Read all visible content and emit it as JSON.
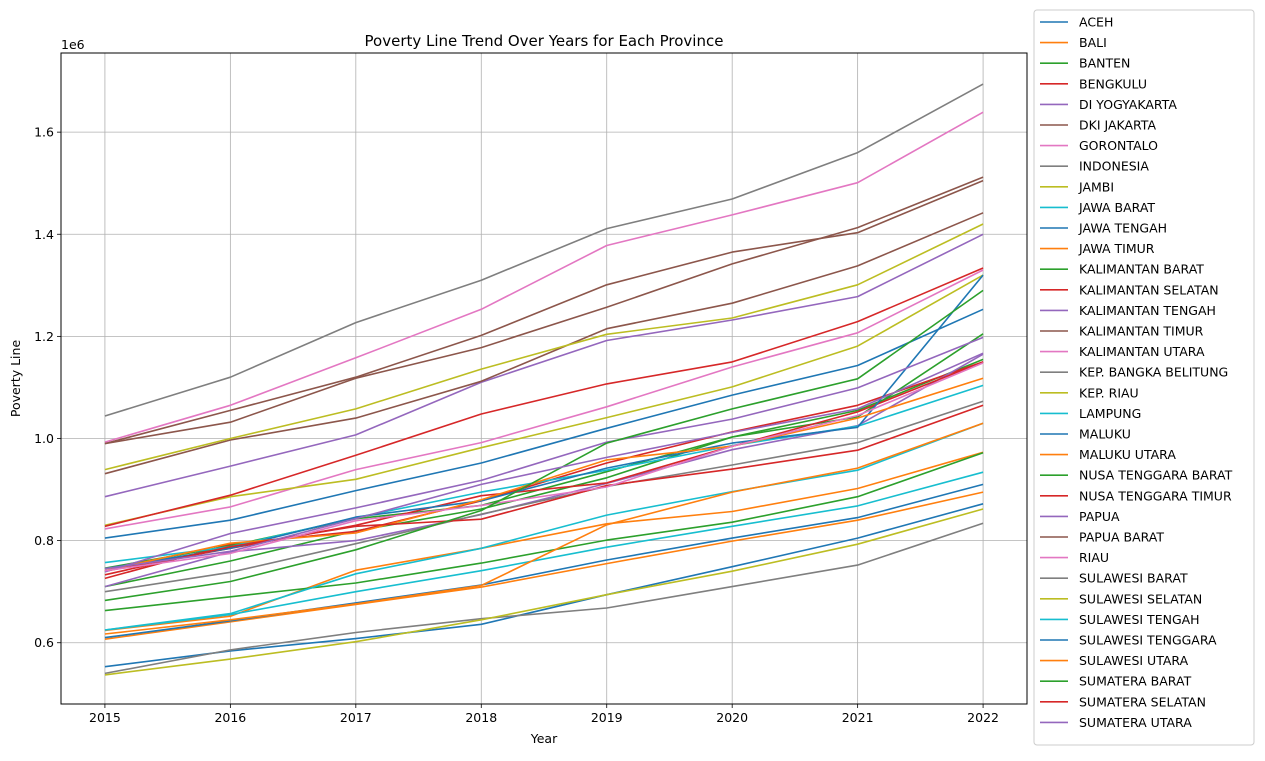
{
  "chart_data": {
    "type": "line",
    "title": "Poverty Line Trend Over Years for Each Province",
    "xlabel": "Year",
    "ylabel": "Poverty Line",
    "offset_label": "1e6",
    "x": [
      2015,
      2016,
      2017,
      2018,
      2019,
      2020,
      2021,
      2022
    ],
    "xlim": [
      2014.65,
      2022.35
    ],
    "ylim": [
      480000,
      1755000
    ],
    "yticks": [
      600000,
      800000,
      1000000,
      1200000,
      1400000,
      1600000
    ],
    "ytick_labels": [
      "0.6",
      "0.8",
      "1.0",
      "1.2",
      "1.4",
      "1.6"
    ],
    "grid": true,
    "legend_position": "outside-right",
    "series": [
      {
        "name": "ACEH",
        "color": "#1f77b4",
        "values": [
          805000,
          840000,
          898000,
          952000,
          1020000,
          1085000,
          1143000,
          1253000
        ]
      },
      {
        "name": "BALI",
        "color": "#ff7f0e",
        "values": [
          624000,
          652000,
          742000,
          785000,
          833000,
          857000,
          902000,
          973000
        ]
      },
      {
        "name": "BANTEN",
        "color": "#2ca02c",
        "values": [
          710000,
          760000,
          819000,
          862000,
          923000,
          1003000,
          1055000,
          1155000
        ]
      },
      {
        "name": "BENGKULU",
        "color": "#d62728",
        "values": [
          726000,
          793000,
          818000,
          878000,
          952000,
          1013000,
          1065000,
          1150000
        ]
      },
      {
        "name": "DI YOGYAKARTA",
        "color": "#9467bd",
        "values": [
          710000,
          778000,
          800000,
          851000,
          912000,
          978000,
          1025000,
          1165000
        ]
      },
      {
        "name": "DKI JAKARTA",
        "color": "#8c564b",
        "values": [
          990000,
          1055000,
          1120000,
          1202000,
          1301000,
          1365000,
          1403000,
          1505000
        ]
      },
      {
        "name": "GORONTALO",
        "color": "#e377c2",
        "values": [
          823000,
          866000,
          939000,
          992000,
          1062000,
          1140000,
          1207000,
          1330000
        ]
      },
      {
        "name": "INDONESIA",
        "color": "#7f7f7f",
        "values": [
          700000,
          738000,
          794000,
          852000,
          906000,
          948000,
          992000,
          1073000
        ]
      },
      {
        "name": "JAMBI",
        "color": "#bcbd22",
        "values": [
          830000,
          886000,
          920000,
          982000,
          1041000,
          1101000,
          1181000,
          1320000
        ]
      },
      {
        "name": "JAWA BARAT",
        "color": "#17becf",
        "values": [
          625000,
          655000,
          700000,
          741000,
          787000,
          828000,
          868000,
          934000
        ]
      },
      {
        "name": "JAWA TENGAH",
        "color": "#1f77b4",
        "values": [
          553000,
          584000,
          608000,
          636000,
          694000,
          749000,
          805000,
          872000
        ]
      },
      {
        "name": "JAWA TIMUR",
        "color": "#ff7f0e",
        "values": [
          607000,
          641000,
          675000,
          709000,
          755000,
          799000,
          840000,
          895000
        ]
      },
      {
        "name": "KALIMANTAN BARAT",
        "color": "#2ca02c",
        "values": [
          746000,
          790000,
          843000,
          869000,
          935000,
          1003000,
          1042000,
          1205000
        ]
      },
      {
        "name": "KALIMANTAN SELATAN",
        "color": "#d62728",
        "values": [
          740000,
          785000,
          830000,
          888000,
          913000,
          985000,
          1052000,
          1150000
        ]
      },
      {
        "name": "KALIMANTAN TENGAH",
        "color": "#9467bd",
        "values": [
          886000,
          946000,
          1007000,
          1110000,
          1192000,
          1232000,
          1278000,
          1400000
        ]
      },
      {
        "name": "KALIMANTAN TIMUR",
        "color": "#8c564b",
        "values": [
          931000,
          997000,
          1040000,
          1112000,
          1215000,
          1265000,
          1338000,
          1442000
        ]
      },
      {
        "name": "KALIMANTAN UTARA",
        "color": "#e377c2",
        "values": [
          993000,
          1065000,
          1158000,
          1253000,
          1378000,
          1438000,
          1501000,
          1639000
        ]
      },
      {
        "name": "KEP. BANGKA BELITUNG",
        "color": "#7f7f7f",
        "values": [
          1044000,
          1120000,
          1227000,
          1310000,
          1411000,
          1469000,
          1560000,
          1694000
        ]
      },
      {
        "name": "KEP. RIAU",
        "color": "#bcbd22",
        "values": [
          939000,
          1000000,
          1058000,
          1136000,
          1204000,
          1236000,
          1301000,
          1420000
        ]
      },
      {
        "name": "LAMPUNG",
        "color": "#17becf",
        "values": [
          757000,
          788000,
          845000,
          895000,
          938000,
          986000,
          1024000,
          1104000
        ]
      },
      {
        "name": "MALUKU",
        "color": "#1f77b4",
        "values": [
          745000,
          785000,
          846000,
          878000,
          942000,
          991000,
          1022000,
          1320000
        ]
      },
      {
        "name": "MALUKU UTARA",
        "color": "#ff7f0e",
        "values": [
          741000,
          795000,
          815000,
          880000,
          958000,
          985000,
          1040000,
          1118000
        ]
      },
      {
        "name": "NUSA TENGGARA BARAT",
        "color": "#2ca02c",
        "values": [
          663000,
          690000,
          717000,
          756000,
          801000,
          836000,
          886000,
          972000
        ]
      },
      {
        "name": "NUSA TENGGARA TIMUR",
        "color": "#d62728",
        "values": [
          733000,
          788000,
          828000,
          842000,
          908000,
          940000,
          977000,
          1065000
        ]
      },
      {
        "name": "PAPUA",
        "color": "#9467bd",
        "values": [
          739000,
          814000,
          864000,
          918000,
          993000,
          1038000,
          1099000,
          1198000
        ]
      },
      {
        "name": "PAPUA BARAT",
        "color": "#8c564b",
        "values": [
          990000,
          1032000,
          1118000,
          1178000,
          1257000,
          1342000,
          1413000,
          1512000
        ]
      },
      {
        "name": "RIAU",
        "color": "#e377c2",
        "values": [
          741000,
          775000,
          839000,
          869000,
          905000,
          985000,
          1045000,
          1148000
        ]
      },
      {
        "name": "SULAWESI BARAT",
        "color": "#7f7f7f",
        "values": [
          540000,
          586000,
          620000,
          647000,
          668000,
          710000,
          752000,
          834000
        ]
      },
      {
        "name": "SULAWESI SELATAN",
        "color": "#bcbd22",
        "values": [
          537000,
          568000,
          602000,
          645000,
          694000,
          740000,
          793000,
          862000
        ]
      },
      {
        "name": "SULAWESI TENGAH",
        "color": "#17becf",
        "values": [
          625000,
          657000,
          735000,
          785000,
          850000,
          896000,
          938000,
          1030000
        ]
      },
      {
        "name": "SULAWESI TENGGARA",
        "color": "#1f77b4",
        "values": [
          610000,
          643000,
          678000,
          713000,
          762000,
          805000,
          845000,
          910000
        ]
      },
      {
        "name": "SULAWESI UTARA",
        "color": "#ff7f0e",
        "values": [
          617000,
          645000,
          676000,
          712000,
          831000,
          895000,
          942000,
          1030000
        ]
      },
      {
        "name": "SUMATERA BARAT",
        "color": "#2ca02c",
        "values": [
          683000,
          720000,
          782000,
          859000,
          991000,
          1058000,
          1117000,
          1290000
        ]
      },
      {
        "name": "SUMATERA SELATAN",
        "color": "#d62728",
        "values": [
          828000,
          889000,
          967000,
          1048000,
          1107000,
          1150000,
          1229000,
          1334000
        ]
      },
      {
        "name": "SUMATERA UTARA",
        "color": "#9467bd",
        "values": [
          745000,
          779000,
          843000,
          910000,
          963000,
          1012000,
          1058000,
          1167000
        ]
      }
    ]
  }
}
